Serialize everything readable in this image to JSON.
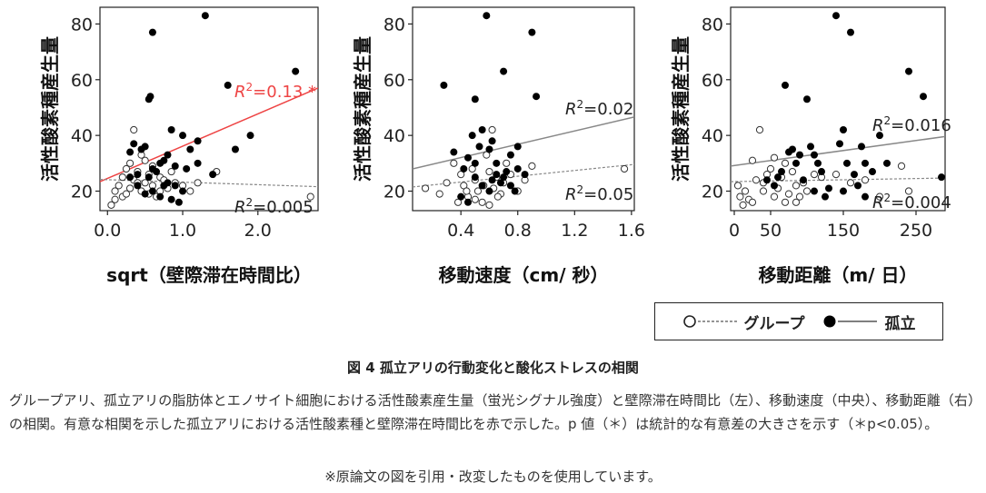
{
  "figure": {
    "title": "図 4  孤立アリの行動変化と酸化ストレスの相関",
    "caption": "グループアリ、孤立アリの脂肪体とエノサイト細胞における活性酸素産生量（蛍光シグナル強度）と壁際滞在時間比（左）、移動速度（中央）、移動距離（右）の相関。有意な相関を示した孤立アリにおける活性酸素種と壁際滞在時間比を赤で示した。p 値（＊）は統計的な有意差の大きさを示す（＊p<0.05）。",
    "source_note": "※原論文の図を引用・改変したものを使用しています。"
  },
  "legend": {
    "group_label": "グループ",
    "isolated_label": "孤立"
  },
  "colors": {
    "isolated_point": "#000000",
    "group_point": "#ffffff",
    "significant_line": "#ee4444",
    "fit_line": "#888888",
    "axis": "#222222"
  },
  "chart_data": [
    {
      "type": "scatter",
      "ylabel": "活性酸素種産生量",
      "xlabel": "sqrt（壁際滞在時間比）",
      "xlim": [
        -0.1,
        2.8
      ],
      "ylim": [
        13,
        86
      ],
      "xticks": [
        0.0,
        1.0,
        2.0
      ],
      "xtick_labels": [
        "0.0",
        "1.0",
        "2.0"
      ],
      "yticks": [
        20,
        40,
        60,
        80
      ],
      "ytick_labels": [
        "20",
        "40",
        "60",
        "80"
      ],
      "series": [
        {
          "name": "孤立",
          "marker": "filled",
          "points": [
            [
              0.3,
              34
            ],
            [
              0.35,
              37
            ],
            [
              0.45,
              35
            ],
            [
              0.5,
              36
            ],
            [
              0.55,
              53
            ],
            [
              0.57,
              54
            ],
            [
              0.6,
              77
            ],
            [
              0.7,
              30
            ],
            [
              0.75,
              31
            ],
            [
              0.8,
              33
            ],
            [
              0.85,
              42
            ],
            [
              0.9,
              29
            ],
            [
              1.0,
              40
            ],
            [
              1.1,
              35
            ],
            [
              1.2,
              38
            ],
            [
              1.3,
              83
            ],
            [
              1.4,
              26
            ],
            [
              1.6,
              58
            ],
            [
              1.7,
              35
            ],
            [
              1.9,
              40
            ],
            [
              2.5,
              63
            ],
            [
              0.3,
              25
            ],
            [
              0.4,
              22
            ],
            [
              0.5,
              19
            ],
            [
              0.6,
              20
            ],
            [
              0.65,
              27
            ],
            [
              0.7,
              18
            ],
            [
              0.75,
              22
            ],
            [
              0.8,
              23
            ],
            [
              0.85,
              17
            ],
            [
              0.9,
              22
            ],
            [
              0.95,
              16
            ],
            [
              1.0,
              20
            ],
            [
              1.05,
              28
            ],
            [
              1.2,
              30
            ],
            [
              0.4,
              26
            ],
            [
              0.55,
              25
            ],
            [
              0.6,
              28
            ]
          ],
          "fit": {
            "y_at_xmin": 23.4,
            "y_at_xmax": 57.0,
            "color": "#ee4444",
            "style": "solid"
          },
          "r2_label": "=0.13 *",
          "r2_color": "#ee4444"
        },
        {
          "name": "グループ",
          "marker": "open",
          "points": [
            [
              0.05,
              15
            ],
            [
              0.1,
              17
            ],
            [
              0.1,
              20
            ],
            [
              0.15,
              22
            ],
            [
              0.2,
              18
            ],
            [
              0.2,
              25
            ],
            [
              0.25,
              28
            ],
            [
              0.3,
              21
            ],
            [
              0.3,
              30
            ],
            [
              0.35,
              42
            ],
            [
              0.35,
              24
            ],
            [
              0.4,
              27
            ],
            [
              0.45,
              33
            ],
            [
              0.45,
              20
            ],
            [
              0.5,
              31
            ],
            [
              0.5,
              23
            ],
            [
              0.55,
              26
            ],
            [
              0.6,
              29
            ],
            [
              0.6,
              22
            ],
            [
              0.65,
              18
            ],
            [
              0.7,
              25
            ],
            [
              0.75,
              24
            ],
            [
              0.8,
              21
            ],
            [
              0.85,
              27
            ],
            [
              0.9,
              23
            ],
            [
              1.0,
              22
            ],
            [
              1.1,
              20
            ],
            [
              1.2,
              23
            ],
            [
              1.45,
              27
            ],
            [
              2.7,
              18
            ],
            [
              0.25,
              19
            ],
            [
              0.4,
              23
            ],
            [
              0.55,
              19
            ],
            [
              0.7,
              20
            ]
          ],
          "fit": {
            "y_at_xmin": 24.2,
            "y_at_xmax": 21.6,
            "color": "#888888",
            "style": "dashed"
          },
          "r2_label": "=0.005",
          "r2_color": "#222222"
        }
      ]
    },
    {
      "type": "scatter",
      "ylabel": "活性酸素種産生量",
      "xlabel": "移動速度（cm/ 秒）",
      "xlim": [
        0.06,
        1.62
      ],
      "ylim": [
        13,
        86
      ],
      "xticks": [
        0.4,
        0.8,
        1.2,
        1.6
      ],
      "xtick_labels": [
        "0.4",
        "0.8",
        "1.2",
        "1.6"
      ],
      "yticks": [
        20,
        40,
        60,
        80
      ],
      "ytick_labels": [
        "20",
        "40",
        "60",
        "80"
      ],
      "series": [
        {
          "name": "孤立",
          "marker": "filled",
          "points": [
            [
              0.28,
              58
            ],
            [
              0.35,
              34
            ],
            [
              0.42,
              28
            ],
            [
              0.45,
              32
            ],
            [
              0.48,
              40
            ],
            [
              0.5,
              53
            ],
            [
              0.53,
              36
            ],
            [
              0.55,
              42
            ],
            [
              0.58,
              83
            ],
            [
              0.6,
              35
            ],
            [
              0.62,
              38
            ],
            [
              0.65,
              30
            ],
            [
              0.7,
              63
            ],
            [
              0.72,
              27
            ],
            [
              0.75,
              33
            ],
            [
              0.8,
              36
            ],
            [
              0.9,
              77
            ],
            [
              0.93,
              54
            ],
            [
              0.4,
              18
            ],
            [
              0.45,
              16
            ],
            [
              0.5,
              25
            ],
            [
              0.55,
              22
            ],
            [
              0.6,
              20
            ],
            [
              0.62,
              24
            ],
            [
              0.65,
              26
            ],
            [
              0.68,
              23
            ],
            [
              0.7,
              25
            ],
            [
              0.75,
              22
            ],
            [
              0.78,
              20
            ],
            [
              0.8,
              28
            ],
            [
              0.85,
              26
            ],
            [
              0.5,
              30
            ]
          ],
          "fit": {
            "y_at_xmin": 28.0,
            "y_at_xmax": 46.6,
            "color": "#888888",
            "style": "solid"
          },
          "r2_label": "=0.02",
          "r2_color": "#222222"
        },
        {
          "name": "グループ",
          "marker": "open",
          "points": [
            [
              0.15,
              21
            ],
            [
              0.25,
              19
            ],
            [
              0.3,
              23
            ],
            [
              0.35,
              30
            ],
            [
              0.4,
              26
            ],
            [
              0.42,
              22
            ],
            [
              0.45,
              18
            ],
            [
              0.48,
              28
            ],
            [
              0.5,
              24
            ],
            [
              0.52,
              20
            ],
            [
              0.55,
              16
            ],
            [
              0.58,
              33
            ],
            [
              0.6,
              27
            ],
            [
              0.62,
              42
            ],
            [
              0.63,
              21
            ],
            [
              0.65,
              25
            ],
            [
              0.68,
              19
            ],
            [
              0.7,
              23
            ],
            [
              0.72,
              30
            ],
            [
              0.75,
              26
            ],
            [
              0.8,
              20
            ],
            [
              0.85,
              24
            ],
            [
              0.9,
              29
            ],
            [
              1.55,
              28
            ],
            [
              0.38,
              16
            ],
            [
              0.44,
              20
            ],
            [
              0.5,
              17
            ],
            [
              0.56,
              22
            ],
            [
              0.6,
              15
            ],
            [
              0.66,
              18
            ]
          ],
          "fit": {
            "y_at_xmin": 21.5,
            "y_at_xmax": 29.6,
            "color": "#888888",
            "style": "dashed"
          },
          "r2_label": "=0.05",
          "r2_color": "#222222"
        }
      ]
    },
    {
      "type": "scatter",
      "ylabel": "活性酸素種産生量",
      "xlabel": "移動距離（m/ 日）",
      "xlim": [
        -5,
        290
      ],
      "ylim": [
        13,
        86
      ],
      "xticks": [
        0,
        50,
        150,
        250
      ],
      "xtick_labels": [
        "0",
        "50",
        "150",
        "250"
      ],
      "yticks": [
        20,
        40,
        60,
        80
      ],
      "ytick_labels": [
        "20",
        "40",
        "60",
        "80"
      ],
      "series": [
        {
          "name": "孤立",
          "marker": "filled",
          "points": [
            [
              45,
              24
            ],
            [
              55,
              22
            ],
            [
              60,
              25
            ],
            [
              65,
              27
            ],
            [
              70,
              58
            ],
            [
              75,
              34
            ],
            [
              80,
              35
            ],
            [
              85,
              30
            ],
            [
              90,
              33
            ],
            [
              100,
              53
            ],
            [
              105,
              36
            ],
            [
              110,
              33
            ],
            [
              115,
              30
            ],
            [
              120,
              27
            ],
            [
              130,
              21
            ],
            [
              140,
              83
            ],
            [
              145,
              37
            ],
            [
              150,
              42
            ],
            [
              155,
              30
            ],
            [
              160,
              77
            ],
            [
              165,
              26
            ],
            [
              170,
              22
            ],
            [
              175,
              36
            ],
            [
              180,
              30
            ],
            [
              190,
              27
            ],
            [
              200,
              40
            ],
            [
              210,
              30
            ],
            [
              240,
              63
            ],
            [
              260,
              54
            ],
            [
              285,
              25
            ],
            [
              95,
              24
            ],
            [
              110,
              20
            ],
            [
              125,
              18
            ],
            [
              150,
              20
            ],
            [
              180,
              18
            ]
          ],
          "fit": {
            "y_at_xmin": 29.0,
            "y_at_xmax": 39.6,
            "color": "#888888",
            "style": "solid"
          },
          "r2_label": "=0.016",
          "r2_color": "#222222"
        },
        {
          "name": "グループ",
          "marker": "open",
          "points": [
            [
              5,
              22
            ],
            [
              8,
              18
            ],
            [
              12,
              15
            ],
            [
              15,
              20
            ],
            [
              20,
              17
            ],
            [
              25,
              16
            ],
            [
              25,
              31
            ],
            [
              30,
              24
            ],
            [
              35,
              42
            ],
            [
              40,
              23
            ],
            [
              45,
              26
            ],
            [
              50,
              28
            ],
            [
              55,
              32
            ],
            [
              60,
              21
            ],
            [
              65,
              25
            ],
            [
              70,
              30
            ],
            [
              75,
              19
            ],
            [
              80,
              27
            ],
            [
              85,
              22
            ],
            [
              90,
              18
            ],
            [
              95,
              23
            ],
            [
              100,
              20
            ],
            [
              110,
              26
            ],
            [
              120,
              25
            ],
            [
              140,
              26
            ],
            [
              160,
              23
            ],
            [
              180,
              24
            ],
            [
              200,
              18
            ],
            [
              230,
              29
            ],
            [
              240,
              20
            ],
            [
              40,
              20
            ],
            [
              55,
              18
            ],
            [
              70,
              16
            ],
            [
              85,
              16
            ]
          ],
          "fit": {
            "y_at_xmin": 23.4,
            "y_at_xmax": 24.7,
            "color": "#888888",
            "style": "dashed"
          },
          "r2_label": "=0.004",
          "r2_color": "#222222"
        }
      ]
    }
  ]
}
